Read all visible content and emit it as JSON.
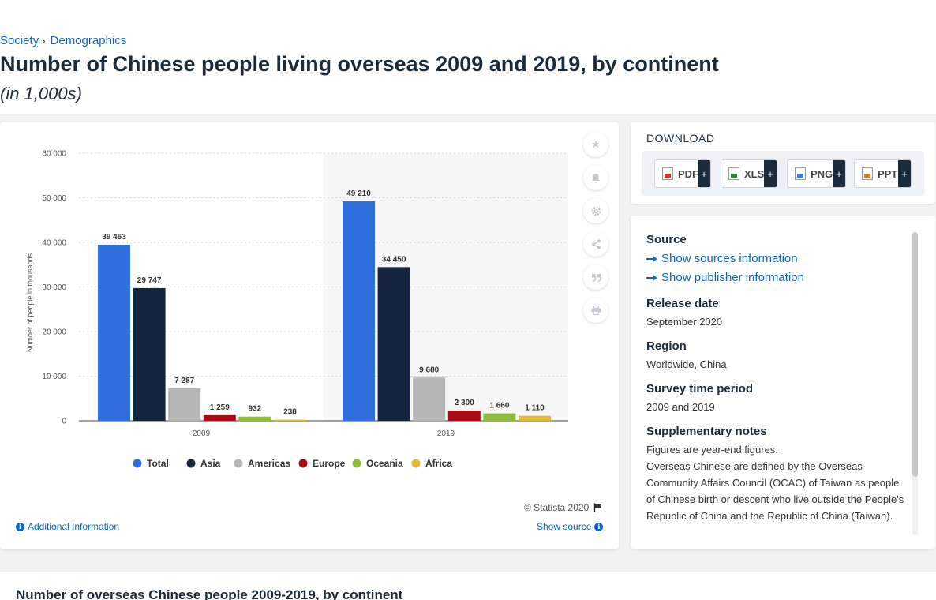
{
  "breadcrumb": {
    "items": [
      "Society",
      "Demographics"
    ],
    "separator": "›"
  },
  "title": "Number of Chinese people living overseas 2009 and 2019, by continent",
  "subtitle": "(in 1,000s)",
  "chart_data": {
    "type": "bar",
    "categories": [
      "2009",
      "2019"
    ],
    "series": [
      {
        "name": "Total",
        "color": "#2f6fde",
        "values": [
          39463,
          49210
        ],
        "labels": [
          "39 463",
          "49 210"
        ]
      },
      {
        "name": "Asia",
        "color": "#13263d",
        "values": [
          29747,
          34450
        ],
        "labels": [
          "29 747",
          "34 450"
        ]
      },
      {
        "name": "Americas",
        "color": "#b6b6b6",
        "values": [
          7287,
          9680
        ],
        "labels": [
          "7 287",
          "9 680"
        ]
      },
      {
        "name": "Europe",
        "color": "#a90b14",
        "values": [
          1259,
          2300
        ],
        "labels": [
          "1 259",
          "2 300"
        ]
      },
      {
        "name": "Oceania",
        "color": "#8bbc3e",
        "values": [
          932,
          1660
        ],
        "labels": [
          "932",
          "1 660"
        ]
      },
      {
        "name": "Africa",
        "color": "#e8b730",
        "values": [
          238,
          1110
        ],
        "labels": [
          "238",
          "1 110"
        ]
      }
    ],
    "ylabel": "Number of people in thousands",
    "ylim": [
      0,
      60000
    ],
    "yticks": [
      0,
      10000,
      20000,
      30000,
      40000,
      50000,
      60000
    ],
    "ytick_labels": [
      "0",
      "10 000",
      "20 000",
      "30 000",
      "40 000",
      "50 000",
      "60 000"
    ],
    "grid": true,
    "legend_position": "bottom"
  },
  "tools": {
    "icons": [
      "star-icon",
      "bell-icon",
      "gear-icon",
      "share-icon",
      "quote-icon",
      "print-icon"
    ]
  },
  "footer": {
    "copyright": "© Statista 2020",
    "additional_info": "Additional Information",
    "show_source": "Show source"
  },
  "download": {
    "title": "DOWNLOAD",
    "buttons": [
      {
        "label": "PDF",
        "plus": "+"
      },
      {
        "label": "XLS",
        "plus": "+"
      },
      {
        "label": "PNG",
        "plus": "+"
      },
      {
        "label": "PPT",
        "plus": "+"
      }
    ]
  },
  "source_panel": {
    "source_heading": "Source",
    "show_sources": "Show sources information",
    "show_publisher": "Show publisher information",
    "release_heading": "Release date",
    "release_value": "September 2020",
    "region_heading": "Region",
    "region_value": "Worldwide, China",
    "survey_heading": "Survey time period",
    "survey_value": "2009 and 2019",
    "notes_heading": "Supplementary notes",
    "notes_line1": "Figures are year-end figures.",
    "notes_line2": "Overseas Chinese are defined by the Overseas Community Affairs Council (OCAC) of Taiwan as people of Chinese birth or descent who live outside the People's Republic of China and the Republic of China (Taiwan)."
  },
  "bottom": {
    "title": "Number of overseas Chinese people 2009-2019, by continent"
  }
}
